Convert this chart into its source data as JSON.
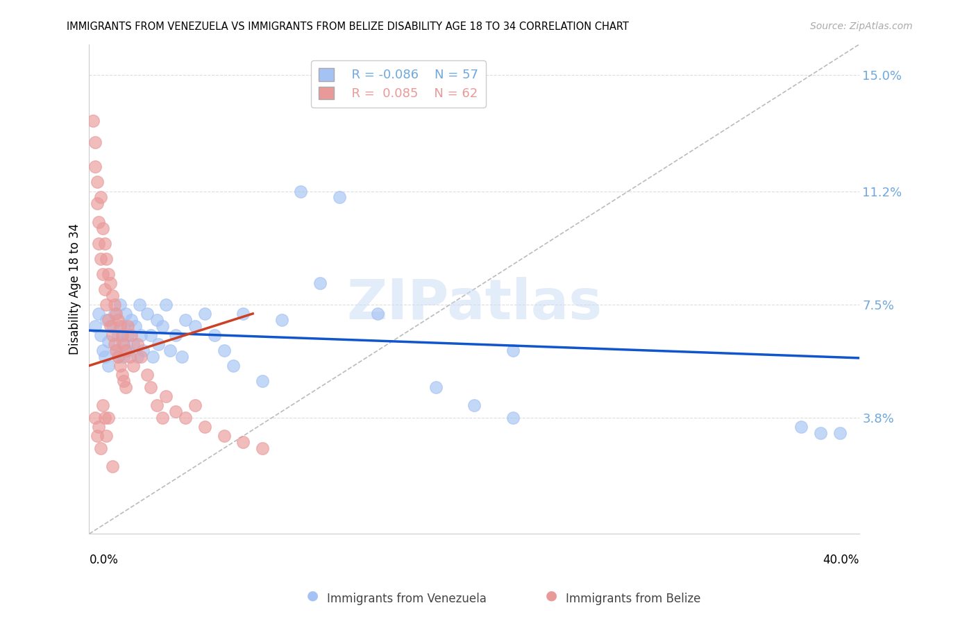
{
  "title": "IMMIGRANTS FROM VENEZUELA VS IMMIGRANTS FROM BELIZE DISABILITY AGE 18 TO 34 CORRELATION CHART",
  "source": "Source: ZipAtlas.com",
  "ylabel": "Disability Age 18 to 34",
  "ytick_vals": [
    0.038,
    0.075,
    0.112,
    0.15
  ],
  "ytick_labels": [
    "3.8%",
    "7.5%",
    "11.2%",
    "15.0%"
  ],
  "xlim": [
    0.0,
    0.4
  ],
  "ylim": [
    0.0,
    0.16
  ],
  "legend_r_venezuela": "R = -0.086",
  "legend_n_venezuela": "N = 57",
  "legend_r_belize": "R =  0.085",
  "legend_n_belize": "N = 62",
  "color_venezuela": "#a4c2f4",
  "color_belize": "#ea9999",
  "color_venezuela_line": "#1155cc",
  "color_belize_line": "#cc4125",
  "watermark": "ZIPatlas",
  "venezuela_scatter_x": [
    0.003,
    0.005,
    0.006,
    0.007,
    0.008,
    0.009,
    0.01,
    0.01,
    0.012,
    0.013,
    0.014,
    0.015,
    0.015,
    0.016,
    0.017,
    0.018,
    0.018,
    0.019,
    0.02,
    0.02,
    0.022,
    0.023,
    0.024,
    0.025,
    0.026,
    0.027,
    0.028,
    0.03,
    0.032,
    0.033,
    0.035,
    0.036,
    0.038,
    0.04,
    0.042,
    0.045,
    0.048,
    0.05,
    0.055,
    0.06,
    0.065,
    0.07,
    0.075,
    0.08,
    0.09,
    0.1,
    0.11,
    0.12,
    0.13,
    0.15,
    0.18,
    0.2,
    0.22,
    0.37,
    0.38,
    0.39,
    0.22
  ],
  "venezuela_scatter_y": [
    0.068,
    0.072,
    0.065,
    0.06,
    0.058,
    0.07,
    0.063,
    0.055,
    0.068,
    0.072,
    0.06,
    0.065,
    0.058,
    0.075,
    0.063,
    0.068,
    0.058,
    0.072,
    0.065,
    0.06,
    0.07,
    0.062,
    0.068,
    0.058,
    0.075,
    0.065,
    0.06,
    0.072,
    0.065,
    0.058,
    0.07,
    0.062,
    0.068,
    0.075,
    0.06,
    0.065,
    0.058,
    0.07,
    0.068,
    0.072,
    0.065,
    0.06,
    0.055,
    0.072,
    0.05,
    0.07,
    0.112,
    0.082,
    0.11,
    0.072,
    0.048,
    0.042,
    0.038,
    0.035,
    0.033,
    0.033,
    0.06
  ],
  "belize_scatter_x": [
    0.002,
    0.003,
    0.003,
    0.004,
    0.004,
    0.005,
    0.005,
    0.006,
    0.006,
    0.007,
    0.007,
    0.008,
    0.008,
    0.009,
    0.009,
    0.01,
    0.01,
    0.011,
    0.011,
    0.012,
    0.012,
    0.013,
    0.013,
    0.014,
    0.014,
    0.015,
    0.015,
    0.016,
    0.016,
    0.017,
    0.017,
    0.018,
    0.018,
    0.019,
    0.019,
    0.02,
    0.021,
    0.022,
    0.023,
    0.025,
    0.027,
    0.03,
    0.032,
    0.035,
    0.038,
    0.04,
    0.045,
    0.05,
    0.055,
    0.06,
    0.07,
    0.08,
    0.09,
    0.003,
    0.004,
    0.005,
    0.006,
    0.007,
    0.008,
    0.009,
    0.01,
    0.012
  ],
  "belize_scatter_y": [
    0.135,
    0.128,
    0.12,
    0.115,
    0.108,
    0.102,
    0.095,
    0.11,
    0.09,
    0.1,
    0.085,
    0.095,
    0.08,
    0.09,
    0.075,
    0.085,
    0.07,
    0.082,
    0.068,
    0.078,
    0.065,
    0.075,
    0.062,
    0.072,
    0.06,
    0.07,
    0.058,
    0.068,
    0.055,
    0.065,
    0.052,
    0.062,
    0.05,
    0.06,
    0.048,
    0.068,
    0.058,
    0.065,
    0.055,
    0.062,
    0.058,
    0.052,
    0.048,
    0.042,
    0.038,
    0.045,
    0.04,
    0.038,
    0.042,
    0.035,
    0.032,
    0.03,
    0.028,
    0.038,
    0.032,
    0.035,
    0.028,
    0.042,
    0.038,
    0.032,
    0.038,
    0.022
  ],
  "ven_line_x": [
    0.0,
    0.4
  ],
  "ven_line_y": [
    0.0665,
    0.0575
  ],
  "bel_line_x": [
    0.0,
    0.085
  ],
  "bel_line_y": [
    0.055,
    0.072
  ],
  "dash_line_x": [
    0.0,
    0.4
  ],
  "dash_line_y": [
    0.0,
    0.16
  ]
}
